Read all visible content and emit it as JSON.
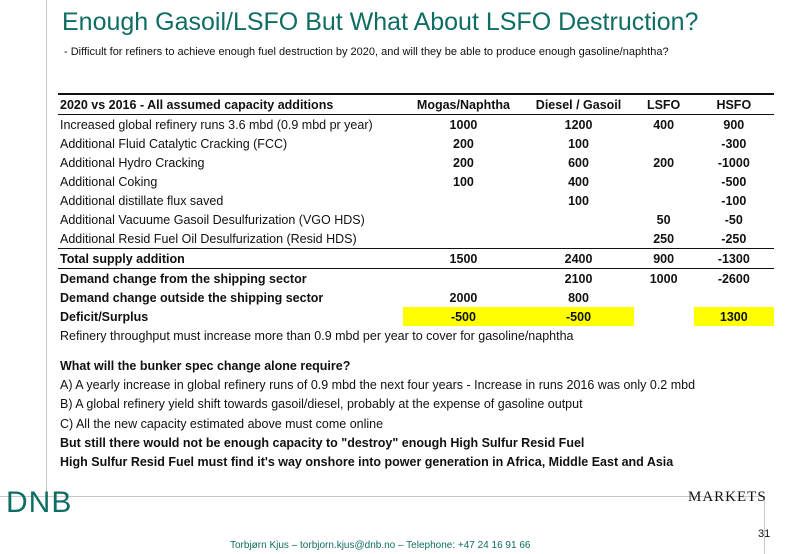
{
  "title": "Enough Gasoil/LSFO But What About LSFO Destruction?",
  "subtitle": "- Difficult for refiners to achieve enough fuel destruction by 2020, and will they be able to produce enough gasoline/naphtha?",
  "table": {
    "header": [
      "2020 vs 2016 - All assumed capacity additions",
      "Mogas/Naphtha",
      "Diesel / Gasoil",
      "LSFO",
      "HSFO"
    ],
    "rows": [
      {
        "label": "Increased global refinery runs 3.6 mbd (0.9 mbd pr year)",
        "values": [
          "1000",
          "1200",
          "400",
          "900"
        ]
      },
      {
        "label": "Additional Fluid Catalytic Cracking (FCC)",
        "values": [
          "200",
          "100",
          "",
          "-300"
        ]
      },
      {
        "label": "Additional Hydro Cracking",
        "values": [
          "200",
          "600",
          "200",
          "-1000"
        ]
      },
      {
        "label": "Additional Coking",
        "values": [
          "100",
          "400",
          "",
          "-500"
        ]
      },
      {
        "label": "Additional distillate flux saved",
        "values": [
          "",
          "100",
          "",
          "-100"
        ]
      },
      {
        "label": "Additional Vacuume Gasoil Desulfurization (VGO HDS)",
        "values": [
          "",
          "",
          "50",
          "-50"
        ]
      },
      {
        "label": "Additional Resid Fuel Oil Desulfurization (Resid HDS)",
        "values": [
          "",
          "",
          "250",
          "-250"
        ]
      },
      {
        "label": "Total supply addition",
        "values": [
          "1500",
          "2400",
          "900",
          "-1300"
        ]
      },
      {
        "label": "Demand change from the shipping sector",
        "values": [
          "",
          "2100",
          "1000",
          "-2600"
        ]
      },
      {
        "label": "Demand change outside the shipping sector",
        "values": [
          "2000",
          "800",
          "",
          ""
        ]
      },
      {
        "label": "Deficit/Surplus",
        "values": [
          "-500",
          "-500",
          "",
          "1300"
        ]
      }
    ],
    "note": "Refinery throughput must increase more than 0.9 mbd per year to cover for gasoline/naphtha"
  },
  "notes": [
    "What will the bunker spec change alone require?",
    "A) A yearly increase in global refinery runs of 0.9 mbd the next four years - Increase in runs 2016 was only 0.2 mbd",
    "B) A global refinery yield shift towards gasoil/diesel, probably at the expense of gasoline output",
    "C) All the new capacity estimated above must come online",
    "But still there would not be enough capacity to \"destroy\" enough High Sulfur Resid Fuel",
    "High Sulfur Resid Fuel must find it's way onshore into power generation in Africa, Middle East and Asia"
  ],
  "logo": "DNB",
  "markets": "MARKETS",
  "page_number": "31",
  "footer": "Torbjørn Kjus – torbjorn.kjus@dnb.no – Telephone: +47 24 16 91 66",
  "colors": {
    "brand": "#0f6e63",
    "highlight": "#ffff00"
  }
}
